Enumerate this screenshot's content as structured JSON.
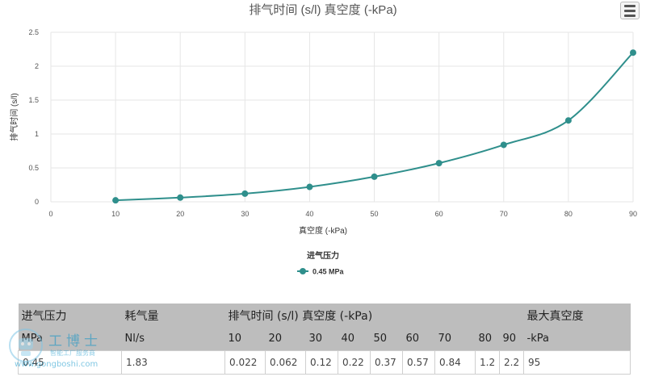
{
  "chart_data": {
    "type": "line",
    "title": "排气时间 (s/l) 真空度 (-kPa)",
    "xlabel": "真空度 (-kPa)",
    "ylabel": "排气时间 (s/l)",
    "xlim": [
      0,
      90
    ],
    "ylim": [
      0,
      2.5
    ],
    "x_ticks": [
      "0",
      "10",
      "20",
      "30",
      "40",
      "50",
      "60",
      "70",
      "80",
      "90"
    ],
    "y_ticks": [
      "0",
      "0.5",
      "1",
      "1.5",
      "2",
      "2.5"
    ],
    "grid": true,
    "legend_title": "进气压力",
    "legend_position": "bottom-center",
    "series": [
      {
        "name": "0.45 MPa",
        "color": "#2f8f8c",
        "x": [
          10,
          20,
          30,
          40,
          50,
          60,
          70,
          80,
          90
        ],
        "y": [
          0.022,
          0.062,
          0.12,
          0.22,
          0.37,
          0.57,
          0.84,
          1.2,
          2.2
        ]
      }
    ]
  },
  "table": {
    "header_row1": {
      "pressure": "进气压力",
      "consumption": "耗气量",
      "evac": "排气时间 (s/l) 真空度 (-kPa)",
      "max_vacuum": "最大真空度"
    },
    "header_row2": {
      "pressure_unit": "MPa",
      "consumption_unit": "Nl/s",
      "levels": [
        "10",
        "20",
        "30",
        "40",
        "50",
        "60",
        "70",
        "80",
        "90"
      ],
      "max_unit": "-kPa"
    },
    "row": {
      "pressure": "0.45",
      "consumption": "1.83",
      "times": [
        "0.022",
        "0.062",
        "0.12",
        "0.22",
        "0.37",
        "0.57",
        "0.84",
        "1.2",
        "2.2"
      ],
      "max_vacuum": "95"
    }
  },
  "watermark": {
    "title": "工博士",
    "subtitle": "智能工厂服务商",
    "url": "www.gongboshi.com"
  },
  "icons": {
    "menu": "hamburger-menu-icon"
  }
}
